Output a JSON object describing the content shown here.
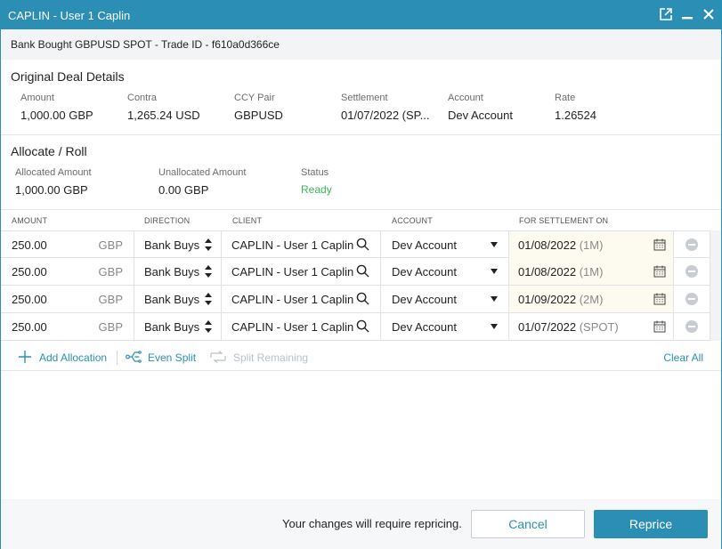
{
  "window": {
    "title": "CAPLIN - User 1 Caplin",
    "trade_heading": "Bank Bought GBPUSD SPOT - Trade ID - f610a0d366ce"
  },
  "original": {
    "title": "Original Deal Details",
    "fields": [
      {
        "label": "Amount",
        "value": "1,000.00 GBP"
      },
      {
        "label": "Contra",
        "value": "1,265.24 USD"
      },
      {
        "label": "CCY Pair",
        "value": "GBPUSD"
      },
      {
        "label": "Settlement",
        "value": "01/07/2022 (SP..."
      },
      {
        "label": "Account",
        "value": "Dev Account"
      },
      {
        "label": "Rate",
        "value": "1.26524"
      }
    ]
  },
  "allocate": {
    "title": "Allocate / Roll",
    "fields": [
      {
        "label": "Allocated Amount",
        "value": "1,000.00 GBP"
      },
      {
        "label": "Unallocated Amount",
        "value": "0.00 GBP"
      },
      {
        "label": "Status",
        "value": "Ready"
      }
    ]
  },
  "grid": {
    "headers": [
      "AMOUNT",
      "DIRECTION",
      "CLIENT",
      "ACCOUNT",
      "FOR SETTLEMENT ON"
    ],
    "rows": [
      {
        "amount": "250.00",
        "ccy": "GBP",
        "direction": "Bank Buys",
        "client": "CAPLIN - User 1 Caplin",
        "account": "Dev Account",
        "date": "01/08/2022",
        "tenor": "(1M)"
      },
      {
        "amount": "250.00",
        "ccy": "GBP",
        "direction": "Bank Buys",
        "client": "CAPLIN - User 1 Caplin",
        "account": "Dev Account",
        "date": "01/08/2022",
        "tenor": "(1M)"
      },
      {
        "amount": "250.00",
        "ccy": "GBP",
        "direction": "Bank Buys",
        "client": "CAPLIN - User 1 Caplin",
        "account": "Dev Account",
        "date": "01/09/2022",
        "tenor": "(2M)"
      },
      {
        "amount": "250.00",
        "ccy": "GBP",
        "direction": "Bank Buys",
        "client": "CAPLIN - User 1 Caplin",
        "account": "Dev Account",
        "date": "01/07/2022",
        "tenor": "(SPOT)"
      }
    ]
  },
  "actions": {
    "add_allocation": "Add Allocation",
    "even_split": "Even Split",
    "split_remaining": "Split Remaining",
    "clear_all": "Clear All"
  },
  "footer": {
    "message": "Your changes will require repricing.",
    "cancel": "Cancel",
    "reprice": "Reprice"
  },
  "colors": {
    "accent": "#2b8fb5",
    "status_ready": "#3cb45a",
    "settlement_cell_highlight": "#fdfaf0"
  },
  "icons": [
    "popout-icon",
    "minimize-icon",
    "close-icon",
    "sort-updown-icon",
    "search-icon",
    "dropdown-caret-icon",
    "calendar-icon",
    "remove-row-icon",
    "plus-icon",
    "even-split-icon",
    "split-remaining-icon"
  ]
}
